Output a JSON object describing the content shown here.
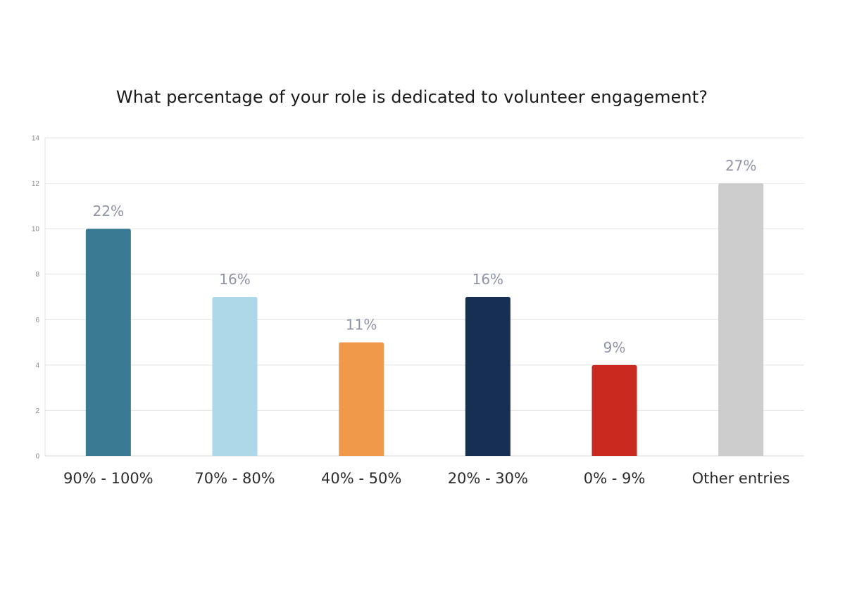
{
  "chart_data": {
    "type": "bar",
    "title": "What percentage of your role is dedicated to volunteer engagement?",
    "xlabel": "",
    "ylabel": "",
    "ylim": [
      0,
      14
    ],
    "yticks": [
      0,
      2,
      4,
      6,
      8,
      10,
      12,
      14
    ],
    "grid": true,
    "legend": "none",
    "categories": [
      "90% - 100%",
      "70% - 80%",
      "40% - 50%",
      "20% - 30%",
      "0% - 9%",
      "Other entries"
    ],
    "values": [
      10,
      7,
      5,
      7,
      4,
      12
    ],
    "data_labels": [
      "22%",
      "16%",
      "11%",
      "16%",
      "9%",
      "27%"
    ],
    "colors": [
      "#3a7a93",
      "#add8e8",
      "#f0994a",
      "#162f52",
      "#c8281e",
      "#cccccc"
    ]
  }
}
